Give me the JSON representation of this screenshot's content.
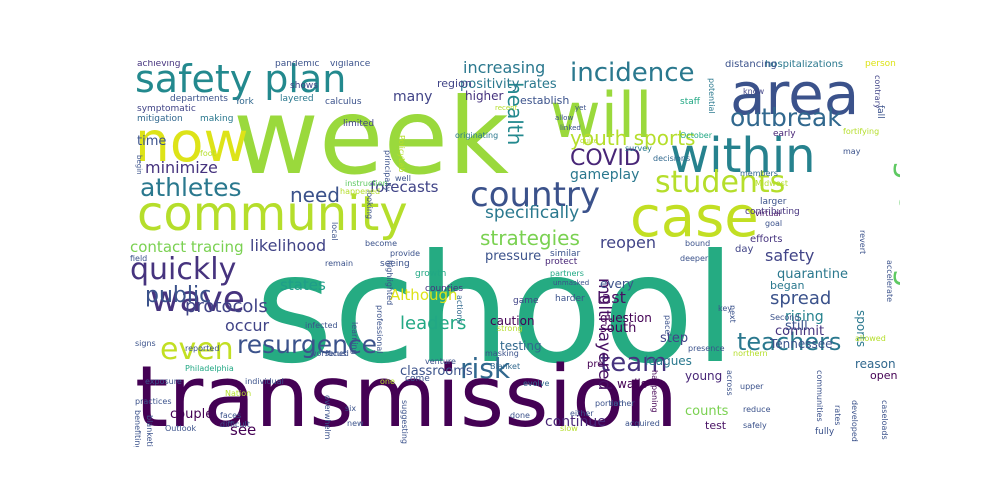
{
  "palette": {
    "dark_purple": "#440154",
    "indigo": "#3b528b",
    "blue": "#31688e",
    "teal": "#21918c",
    "green": "#25ab82",
    "lime": "#9ad93c",
    "yellow_green": "#c2df23",
    "pale": "#dde318",
    "background": "#ffffff"
  },
  "words": [
    {
      "text": "school",
      "color": "#25ab82"
    },
    {
      "text": "week",
      "color": "#9ad93c"
    },
    {
      "text": "transmission",
      "color": "#440154"
    },
    {
      "text": "community",
      "color": "#b5de2b"
    },
    {
      "text": "case",
      "color": "#c2df23"
    },
    {
      "text": "area",
      "color": "#3b528b"
    },
    {
      "text": "within",
      "color": "#26828e"
    },
    {
      "text": "will",
      "color": "#9ad93c"
    },
    {
      "text": "now",
      "color": "#dde318"
    },
    {
      "text": "safety plan",
      "color": "#23898e"
    },
    {
      "text": "wave",
      "color": "#46337e"
    },
    {
      "text": "growing",
      "color": "#5ec962"
    },
    {
      "text": "country",
      "color": "#3b528b"
    },
    {
      "text": "students",
      "color": "#b5de2b"
    },
    {
      "text": "risk",
      "color": "#31688e"
    },
    {
      "text": "team",
      "color": "#46337e"
    },
    {
      "text": "even",
      "color": "#c2df23"
    },
    {
      "text": "quickly",
      "color": "#46337e"
    },
    {
      "text": "incidence",
      "color": "#2a788e"
    },
    {
      "text": "outbreak",
      "color": "#31688e"
    },
    {
      "text": "athletes",
      "color": "#2a788e"
    },
    {
      "text": "resurgence",
      "color": "#3b528b"
    },
    {
      "text": "teachers",
      "color": "#2a788e"
    },
    {
      "text": "health",
      "color": "#23898e"
    },
    {
      "text": "COVID",
      "color": "#482677"
    },
    {
      "text": "youth sports",
      "color": "#b5de2b"
    },
    {
      "text": "strategies",
      "color": "#7ad151"
    },
    {
      "text": "public",
      "color": "#3b528b"
    },
    {
      "text": "need",
      "color": "#3b528b"
    },
    {
      "text": "multi layered",
      "color": "#471063"
    },
    {
      "text": "specifically",
      "color": "#2a788e"
    },
    {
      "text": "protocols",
      "color": "#414487"
    },
    {
      "text": "leaders",
      "color": "#22a884"
    },
    {
      "text": "increasing",
      "color": "#2a788e"
    },
    {
      "text": "minimize",
      "color": "#46337e"
    },
    {
      "text": "spread",
      "color": "#3b528b"
    },
    {
      "text": "likelihood",
      "color": "#414487"
    },
    {
      "text": "forecasts",
      "color": "#414487"
    },
    {
      "text": "contact tracing",
      "color": "#7ad151"
    },
    {
      "text": "reopen",
      "color": "#414487"
    },
    {
      "text": "Although",
      "color": "#dde318"
    },
    {
      "text": "states",
      "color": "#1f9e89"
    },
    {
      "text": "occur",
      "color": "#414487"
    },
    {
      "text": "last",
      "color": "#471063"
    },
    {
      "text": "gameplay",
      "color": "#2a788e"
    },
    {
      "text": "positivity rates",
      "color": "#2a788e"
    },
    {
      "text": "safety",
      "color": "#414487"
    },
    {
      "text": "many",
      "color": "#414487"
    },
    {
      "text": "see",
      "color": "#440154"
    },
    {
      "text": "time",
      "color": "#3b528b"
    },
    {
      "text": "quarantine",
      "color": "#2a788e"
    },
    {
      "text": "rising",
      "color": "#26828e"
    },
    {
      "text": "sports",
      "color": "#2a788e"
    },
    {
      "text": "continue",
      "color": "#482677"
    },
    {
      "text": "counts",
      "color": "#7ad151"
    },
    {
      "text": "commit",
      "color": "#46337e"
    },
    {
      "text": "higher",
      "color": "#46337e"
    },
    {
      "text": "pressure",
      "color": "#3b528b"
    },
    {
      "text": "testing",
      "color": "#31688e"
    },
    {
      "text": "classrooms",
      "color": "#3b528b"
    },
    {
      "text": "couple",
      "color": "#440154"
    },
    {
      "text": "Tennessee",
      "color": "#3b528b"
    },
    {
      "text": "question",
      "color": "#440154"
    },
    {
      "text": "caution",
      "color": "#440154"
    },
    {
      "text": "leagues",
      "color": "#2a788e"
    },
    {
      "text": "young",
      "color": "#482677"
    },
    {
      "text": "south",
      "color": "#440154"
    },
    {
      "text": "step",
      "color": "#414487"
    },
    {
      "text": "still",
      "color": "#3b528b"
    },
    {
      "text": "began",
      "color": "#2a788e"
    },
    {
      "text": "every",
      "color": "#3b528b"
    },
    {
      "text": "reason",
      "color": "#31688e"
    },
    {
      "text": "open",
      "color": "#440154"
    },
    {
      "text": "walls",
      "color": "#440154"
    },
    {
      "text": "test",
      "color": "#471063"
    },
    {
      "text": "establish",
      "color": "#3b528b"
    },
    {
      "text": "region",
      "color": "#414487"
    },
    {
      "text": "hospitalizations",
      "color": "#2a788e"
    },
    {
      "text": "distancing",
      "color": "#3b528b"
    },
    {
      "text": "achieving",
      "color": "#46337e"
    },
    {
      "text": "pandemic",
      "color": "#3b528b"
    },
    {
      "text": "vigilance",
      "color": "#3b528b"
    },
    {
      "text": "symptomatic",
      "color": "#414487"
    },
    {
      "text": "mitigation",
      "color": "#31688e"
    },
    {
      "text": "departments",
      "color": "#3b528b"
    },
    {
      "text": "making",
      "color": "#2a788e"
    },
    {
      "text": "York",
      "color": "#31688e"
    },
    {
      "text": "layered",
      "color": "#2a788e"
    },
    {
      "text": "shows",
      "color": "#414487"
    },
    {
      "text": "calculus",
      "color": "#3b528b"
    },
    {
      "text": "limited",
      "color": "#414487"
    },
    {
      "text": "instruction",
      "color": "#5ec962"
    },
    {
      "text": "originating",
      "color": "#2a788e"
    },
    {
      "text": "staff",
      "color": "#22a884"
    },
    {
      "text": "potential",
      "color": "#2a788e"
    },
    {
      "text": "know",
      "color": "#414487"
    },
    {
      "text": "person",
      "color": "#dde318"
    },
    {
      "text": "contrary",
      "color": "#414487"
    },
    {
      "text": "fall",
      "color": "#3b528b"
    },
    {
      "text": "fortifying",
      "color": "#b5de2b"
    },
    {
      "text": "early",
      "color": "#482677"
    },
    {
      "text": "October",
      "color": "#22a884"
    },
    {
      "text": "survey",
      "color": "#2a788e"
    },
    {
      "text": "decisions",
      "color": "#31688e"
    },
    {
      "text": "members",
      "color": "#31688e"
    },
    {
      "text": "Midwest",
      "color": "#b5de2b"
    },
    {
      "text": "larger",
      "color": "#3b528b"
    },
    {
      "text": "virtual",
      "color": "#471063"
    },
    {
      "text": "goal",
      "color": "#3b528b"
    },
    {
      "text": "efforts",
      "color": "#46337e"
    },
    {
      "text": "contributing",
      "color": "#46337e"
    },
    {
      "text": "day",
      "color": "#414487"
    },
    {
      "text": "bound",
      "color": "#3b528b"
    },
    {
      "text": "deeper",
      "color": "#3b528b"
    },
    {
      "text": "similar",
      "color": "#3b528b"
    },
    {
      "text": "protect",
      "color": "#482677"
    },
    {
      "text": "partners",
      "color": "#22a884"
    },
    {
      "text": "seeing",
      "color": "#3b528b"
    },
    {
      "text": "growth",
      "color": "#22a884"
    },
    {
      "text": "counties",
      "color": "#46337e"
    },
    {
      "text": "strong",
      "color": "#b5de2b"
    },
    {
      "text": "game",
      "color": "#414487"
    },
    {
      "text": "harder",
      "color": "#3b528b"
    },
    {
      "text": "masking",
      "color": "#3b528b"
    },
    {
      "text": "come",
      "color": "#3b528b"
    },
    {
      "text": "Blanket",
      "color": "#31688e"
    },
    {
      "text": "pre",
      "color": "#440154"
    },
    {
      "text": "evolve",
      "color": "#31688e"
    },
    {
      "text": "portion",
      "color": "#3b528b"
    },
    {
      "text": "either",
      "color": "#3b528b"
    },
    {
      "text": "done",
      "color": "#3b528b"
    },
    {
      "text": "acquired",
      "color": "#3b528b"
    },
    {
      "text": "rather",
      "color": "#3b528b"
    },
    {
      "text": "reduce",
      "color": "#3b528b"
    },
    {
      "text": "fully",
      "color": "#3b528b"
    },
    {
      "text": "safely",
      "color": "#3b528b"
    },
    {
      "text": "communities",
      "color": "#3b528b"
    },
    {
      "text": "developed",
      "color": "#3b528b"
    },
    {
      "text": "rates",
      "color": "#3b528b"
    },
    {
      "text": "caseloads",
      "color": "#3b528b"
    },
    {
      "text": "allowed",
      "color": "#b5de2b"
    },
    {
      "text": "northern",
      "color": "#b5de2b"
    },
    {
      "text": "Second",
      "color": "#3b528b"
    },
    {
      "text": "upper",
      "color": "#3b528b"
    },
    {
      "text": "presence",
      "color": "#3b528b"
    },
    {
      "text": "next",
      "color": "#3b528b"
    },
    {
      "text": "key",
      "color": "#3b528b"
    },
    {
      "text": "pace",
      "color": "#3b528b"
    },
    {
      "text": "across",
      "color": "#3b528b"
    },
    {
      "text": "happening",
      "color": "#440154"
    },
    {
      "text": "actions",
      "color": "#31688e"
    },
    {
      "text": "become",
      "color": "#3b528b"
    },
    {
      "text": "local",
      "color": "#3b528b"
    },
    {
      "text": "provide",
      "color": "#3b528b"
    },
    {
      "text": "looking",
      "color": "#3b528b"
    },
    {
      "text": "happened",
      "color": "#b5de2b"
    },
    {
      "text": "well",
      "color": "#3b528b"
    },
    {
      "text": "PolicyLab",
      "color": "#b5de2b"
    },
    {
      "text": "principally",
      "color": "#3b528b"
    },
    {
      "text": "foot",
      "color": "#b5de2b"
    },
    {
      "text": "field",
      "color": "#3b528b"
    },
    {
      "text": "remain",
      "color": "#3b528b"
    },
    {
      "text": "highlighted",
      "color": "#3b528b"
    },
    {
      "text": "infected",
      "color": "#3b528b"
    },
    {
      "text": "learning",
      "color": "#3b528b"
    },
    {
      "text": "professional",
      "color": "#3b528b"
    },
    {
      "text": "worsened",
      "color": "#3b528b"
    },
    {
      "text": "reported",
      "color": "#3b528b"
    },
    {
      "text": "signs",
      "color": "#3b528b"
    },
    {
      "text": "focus",
      "color": "#3b528b"
    },
    {
      "text": "venture",
      "color": "#3b528b"
    },
    {
      "text": "Philadelphia",
      "color": "#22a884"
    },
    {
      "text": "exposure",
      "color": "#3b528b"
    },
    {
      "text": "individual",
      "color": "#3b528b"
    },
    {
      "text": "one",
      "color": "#b5de2b"
    },
    {
      "text": "Nation",
      "color": "#b5de2b"
    },
    {
      "text": "practices",
      "color": "#3b528b"
    },
    {
      "text": "faces",
      "color": "#3b528b"
    },
    {
      "text": "difficult",
      "color": "#3b528b"
    },
    {
      "text": "Outlook",
      "color": "#3b528b"
    },
    {
      "text": "benefiting",
      "color": "#3b528b"
    },
    {
      "text": "blanketing",
      "color": "#3b528b"
    },
    {
      "text": "overwhelm",
      "color": "#3b528b"
    },
    {
      "text": "six",
      "color": "#3b528b"
    },
    {
      "text": "new",
      "color": "#3b528b"
    },
    {
      "text": "suggesting",
      "color": "#3b528b"
    },
    {
      "text": "slow",
      "color": "#b5de2b"
    },
    {
      "text": "recent",
      "color": "#b5de2b"
    },
    {
      "text": "yet",
      "color": "#3b528b"
    },
    {
      "text": "allow",
      "color": "#3b528b"
    },
    {
      "text": "linked",
      "color": "#3b528b"
    },
    {
      "text": "quite",
      "color": "#b5de2b"
    },
    {
      "text": "may",
      "color": "#3b528b"
    },
    {
      "text": "begin",
      "color": "#3b528b"
    },
    {
      "text": "revert",
      "color": "#3b528b"
    },
    {
      "text": "accelerate",
      "color": "#3b528b"
    },
    {
      "text": "unmasked",
      "color": "#3b528b"
    }
  ]
}
